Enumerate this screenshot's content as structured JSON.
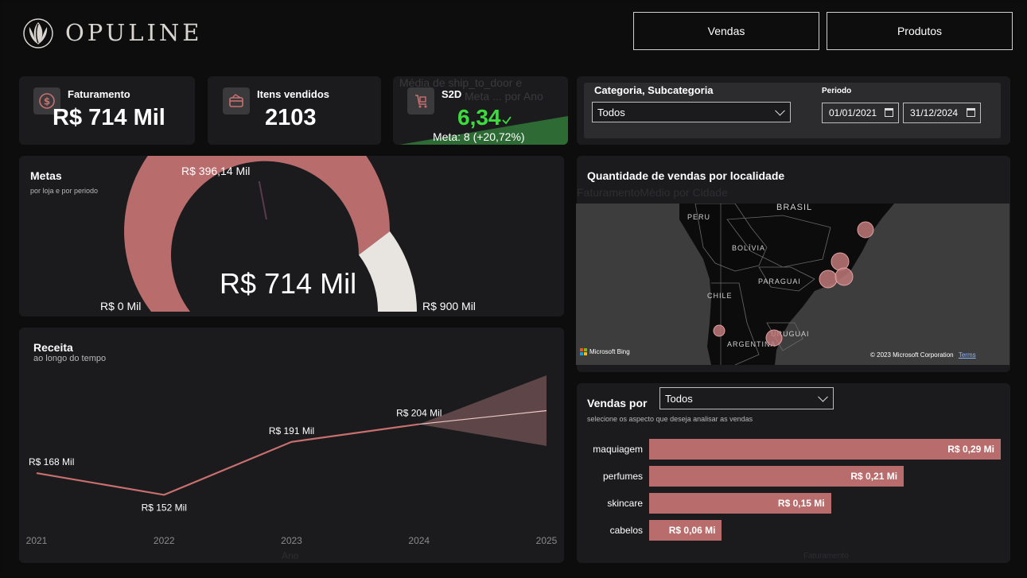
{
  "header": {
    "logo_text": "OPULINE",
    "nav": [
      {
        "label": "Vendas"
      },
      {
        "label": "Produtos"
      }
    ]
  },
  "kpis": {
    "faturamento": {
      "label": "Faturamento",
      "value": "R$ 714 Mil"
    },
    "itens": {
      "label": "Itens vendidos",
      "value": "2103"
    },
    "ship": {
      "ghost_title": "Média de ship_to_door e",
      "ghost_sub": "Meta ... por Ano",
      "label": "S2D",
      "value": "6,34",
      "meta": "Meta: 8 (+20,72%)"
    }
  },
  "filters": {
    "category_label": "Categoria, Subcategoria",
    "category_value": "Todos",
    "period_label": "Periodo",
    "date_from": "01/01/2021",
    "date_to": "31/12/2024"
  },
  "metas": {
    "title": "Metas",
    "subtitle": "por loja e por periodo",
    "center_value": "R$ 714 Mil",
    "marker_label": "R$ 396,14 Mil",
    "min_label": "R$ 0 Mil",
    "max_label": "R$ 900 Mil",
    "value": 714,
    "marker": 396.14,
    "min": 0,
    "max": 900
  },
  "map": {
    "title": "Quantidade de vendas por localidade",
    "ghost": "FaturamentoMédio por Cidade",
    "countries": [
      "PERU",
      "BRASIL",
      "BOLÍVIA",
      "PARAGUAI",
      "CHILE",
      "URUGUAI",
      "ARGENTINA"
    ],
    "bing": "Microsoft Bing",
    "copyright": "© 2023 Microsoft Corporation",
    "terms": "Terms"
  },
  "receita": {
    "title": "Receita",
    "subtitle": "ao longo do tempo",
    "axis_ghost": "Ano",
    "chart_data": {
      "type": "line",
      "x": [
        "2021",
        "2022",
        "2023",
        "2024",
        "2025"
      ],
      "series": [
        {
          "values": [
            168,
            152,
            191,
            204,
            null
          ],
          "labels": [
            "R$ 168 Mil",
            "R$ 152 Mil",
            "R$ 191 Mil",
            "R$ 204 Mil",
            ""
          ]
        }
      ],
      "forecast": {
        "from": "2024",
        "to": "2025",
        "value": 214,
        "upper": 240,
        "lower": 188
      },
      "ylim": [
        130,
        250
      ]
    }
  },
  "vendas_por": {
    "title": "Vendas por",
    "dropdown": "Todos",
    "subtitle": "selecione os aspecto que deseja analisar as vendas",
    "axis_ghost": "Faturamento",
    "chart_data": {
      "type": "bar",
      "orientation": "horizontal",
      "categories": [
        "maquiagem",
        "perfumes",
        "skincare",
        "cabelos"
      ],
      "values": [
        0.29,
        0.21,
        0.15,
        0.06
      ],
      "labels": [
        "R$ 0,29 Mi",
        "R$ 0,21 Mi",
        "R$ 0,15 Mi",
        "R$ 0,06 Mi"
      ],
      "xlim": [
        0,
        0.29
      ]
    }
  }
}
